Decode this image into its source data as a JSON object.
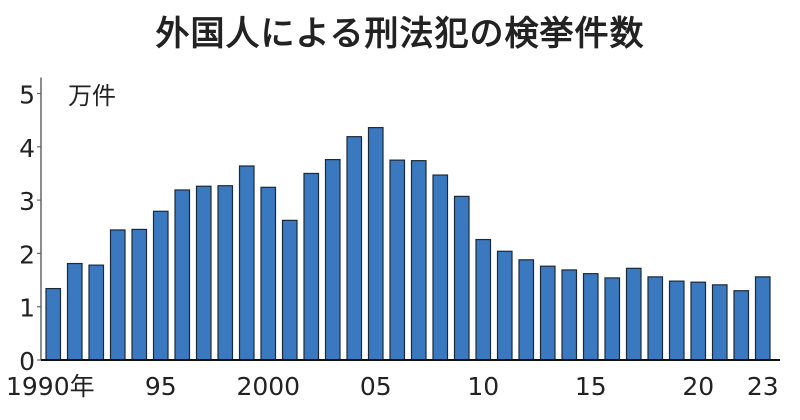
{
  "chart_data": {
    "type": "bar",
    "title": "外国人による刑法犯の検挙件数",
    "ylabel": "万件",
    "ylim": [
      0,
      5
    ],
    "yticks": [
      0,
      1,
      2,
      3,
      4,
      5
    ],
    "xtick_labels": [
      {
        "year": 1990,
        "label": "1990年"
      },
      {
        "year": 1995,
        "label": "95"
      },
      {
        "year": 2000,
        "label": "2000"
      },
      {
        "year": 2005,
        "label": "05"
      },
      {
        "year": 2010,
        "label": "10"
      },
      {
        "year": 2015,
        "label": "15"
      },
      {
        "year": 2020,
        "label": "20"
      },
      {
        "year": 2023,
        "label": "23"
      }
    ],
    "categories": [
      1990,
      1991,
      1992,
      1993,
      1994,
      1995,
      1996,
      1997,
      1998,
      1999,
      2000,
      2001,
      2002,
      2003,
      2004,
      2005,
      2006,
      2007,
      2008,
      2009,
      2010,
      2011,
      2012,
      2013,
      2014,
      2015,
      2016,
      2017,
      2018,
      2019,
      2020,
      2021,
      2022,
      2023
    ],
    "values": [
      1.34,
      1.81,
      1.78,
      2.44,
      2.45,
      2.79,
      3.19,
      3.26,
      3.27,
      3.64,
      3.24,
      2.62,
      3.5,
      3.76,
      4.19,
      4.36,
      3.75,
      3.74,
      3.47,
      3.07,
      2.26,
      2.04,
      1.88,
      1.76,
      1.69,
      1.62,
      1.54,
      1.72,
      1.56,
      1.48,
      1.46,
      1.41,
      1.3,
      1.56
    ],
    "bar_color": "#3a78bf",
    "grid": false
  }
}
